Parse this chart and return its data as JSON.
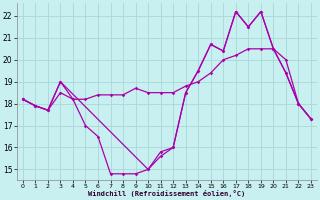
{
  "xlabel": "Windchill (Refroidissement éolien,°C)",
  "background_color": "#c8f0f0",
  "line_color": "#aa00aa",
  "grid_color": "#a8d8d8",
  "xlim": [
    -0.5,
    23.5
  ],
  "ylim": [
    14.5,
    22.6
  ],
  "yticks": [
    15,
    16,
    17,
    18,
    19,
    20,
    21,
    22
  ],
  "xticks": [
    0,
    1,
    2,
    3,
    4,
    5,
    6,
    7,
    8,
    9,
    10,
    11,
    12,
    13,
    14,
    15,
    16,
    17,
    18,
    19,
    20,
    21,
    22,
    23
  ],
  "line1_x": [
    0,
    1,
    2,
    3,
    4,
    5,
    6,
    7,
    8,
    9,
    10,
    11,
    12,
    13,
    14,
    15,
    16,
    17,
    18,
    19,
    20,
    21,
    22,
    23
  ],
  "line1_y": [
    18.2,
    17.9,
    17.7,
    19.0,
    18.2,
    17.0,
    16.5,
    14.8,
    14.8,
    14.8,
    15.0,
    15.8,
    16.0,
    18.5,
    19.5,
    20.7,
    20.4,
    22.2,
    21.5,
    22.2,
    20.5,
    19.4,
    18.0,
    17.3
  ],
  "line2_x": [
    0,
    1,
    2,
    3,
    4,
    5,
    6,
    7,
    8,
    9,
    10,
    11,
    12,
    13,
    14,
    15,
    16,
    17,
    18,
    19,
    20,
    21,
    22,
    23
  ],
  "line2_y": [
    18.2,
    17.9,
    17.7,
    18.5,
    18.2,
    18.2,
    18.4,
    18.4,
    18.4,
    18.7,
    18.5,
    18.5,
    18.5,
    18.8,
    19.0,
    19.4,
    20.0,
    20.2,
    20.5,
    20.5,
    20.5,
    20.0,
    18.0,
    17.3
  ],
  "line3_x": [
    0,
    1,
    2,
    3,
    10,
    11,
    12,
    13,
    14,
    15,
    16,
    17,
    18,
    19,
    20,
    21,
    22,
    23
  ],
  "line3_y": [
    18.2,
    17.9,
    17.7,
    19.0,
    15.0,
    15.6,
    16.0,
    18.5,
    19.5,
    20.7,
    20.4,
    22.2,
    21.5,
    22.2,
    20.5,
    19.4,
    18.0,
    17.3
  ]
}
